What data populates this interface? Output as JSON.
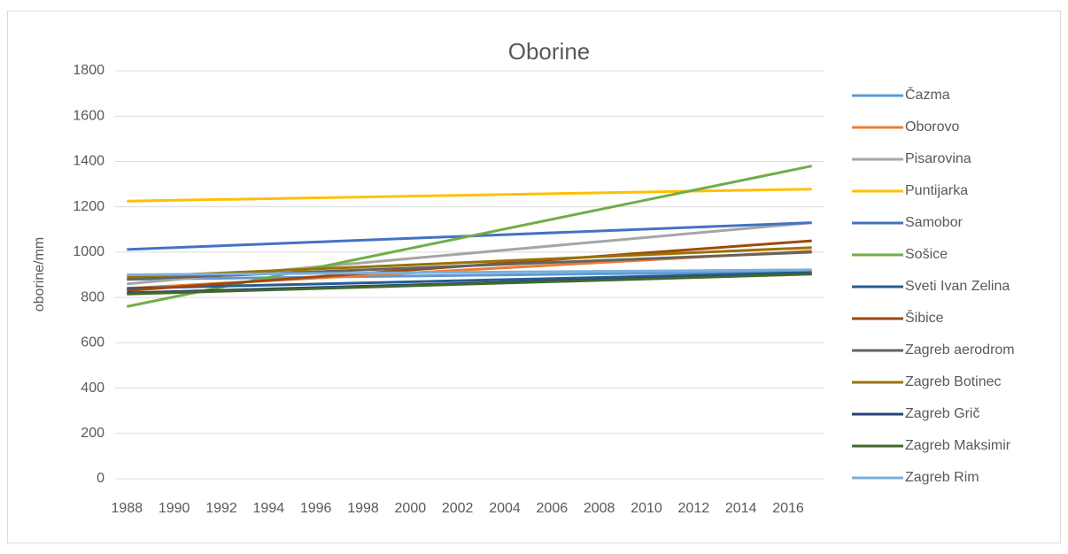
{
  "chart_data": {
    "type": "line",
    "title": "Oborine",
    "y_label": "oborine/mm",
    "x": [
      1988,
      2017
    ],
    "xlim": [
      1987.5,
      2017.5
    ],
    "xticks": [
      1988,
      1990,
      1992,
      1994,
      1996,
      1998,
      2000,
      2002,
      2004,
      2006,
      2008,
      2010,
      2012,
      2014,
      2016
    ],
    "ylim": [
      0,
      1800
    ],
    "yticks": [
      0,
      200,
      400,
      600,
      800,
      1000,
      1200,
      1400,
      1600,
      1800
    ],
    "grid": true,
    "legend": "right",
    "series": [
      {
        "name": "Čazma",
        "color": "#5b9bd5",
        "values": [
          880,
          915
        ]
      },
      {
        "name": "Oborovo",
        "color": "#ed7d31",
        "values": [
          840,
          1005
        ]
      },
      {
        "name": "Pisarovina",
        "color": "#a5a5a5",
        "values": [
          860,
          1130
        ]
      },
      {
        "name": "Puntijarka",
        "color": "#ffc000",
        "values": [
          1225,
          1278
        ]
      },
      {
        "name": "Samobor",
        "color": "#4472c4",
        "values": [
          1012,
          1130
        ]
      },
      {
        "name": "Sošice",
        "color": "#70ad47",
        "values": [
          760,
          1380
        ]
      },
      {
        "name": "Sveti Ivan Zelina",
        "color": "#255e91",
        "values": [
          840,
          910
        ]
      },
      {
        "name": "Šibice",
        "color": "#9e480e",
        "values": [
          830,
          1050
        ]
      },
      {
        "name": "Zagreb aerodrom",
        "color": "#636363",
        "values": [
          880,
          1000
        ]
      },
      {
        "name": "Zagreb Botinec",
        "color": "#997300",
        "values": [
          890,
          1020
        ]
      },
      {
        "name": "Zagreb Grič",
        "color": "#264478",
        "values": [
          820,
          905
        ]
      },
      {
        "name": "Zagreb Maksimir",
        "color": "#43682b",
        "values": [
          815,
          903
        ]
      },
      {
        "name": "Zagreb Rim",
        "color": "#7cafdd",
        "values": [
          900,
          922
        ]
      }
    ]
  }
}
